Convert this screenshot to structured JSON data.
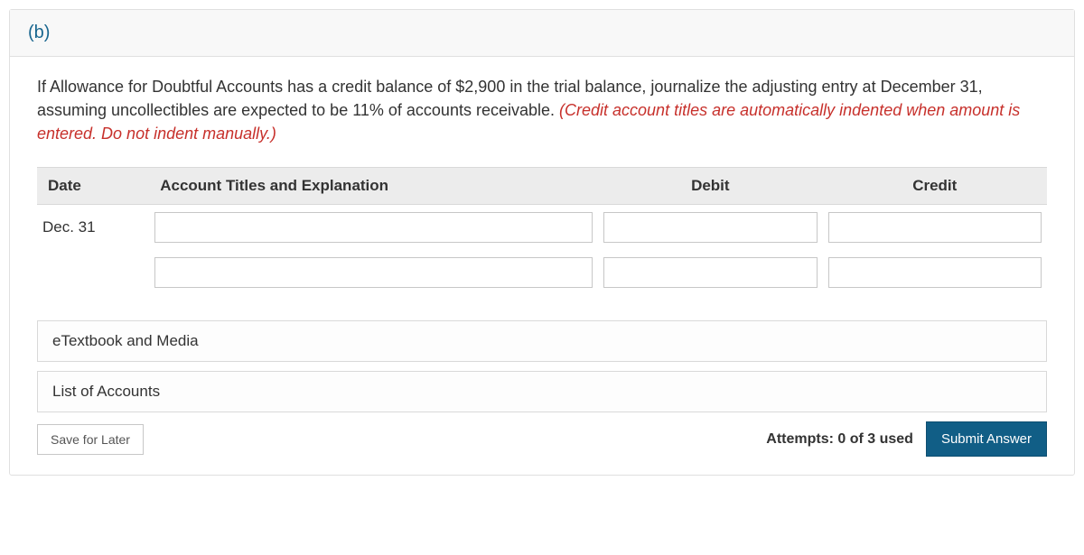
{
  "part_label": "(b)",
  "question_main": "If Allowance for Doubtful Accounts has a credit balance of $2,900 in the trial balance, journalize the adjusting entry at December 31, assuming uncollectibles are expected to be 11% of accounts receivable. ",
  "question_note": "(Credit account titles are automatically indented when amount is entered. Do not indent manually.)",
  "table": {
    "headers": {
      "date": "Date",
      "account": "Account Titles and Explanation",
      "debit": "Debit",
      "credit": "Credit"
    },
    "rows": [
      {
        "date": "Dec. 31",
        "account": "",
        "debit": "",
        "credit": ""
      },
      {
        "date": "",
        "account": "",
        "debit": "",
        "credit": ""
      }
    ]
  },
  "links": {
    "etextbook": "eTextbook and Media",
    "accounts": "List of Accounts"
  },
  "footer": {
    "save": "Save for Later",
    "attempts": "Attempts: 0 of 3 used",
    "submit": "Submit Answer"
  },
  "colors": {
    "accent_link": "#19668f",
    "warning_red": "#c7302b",
    "submit_bg": "#115e86"
  }
}
